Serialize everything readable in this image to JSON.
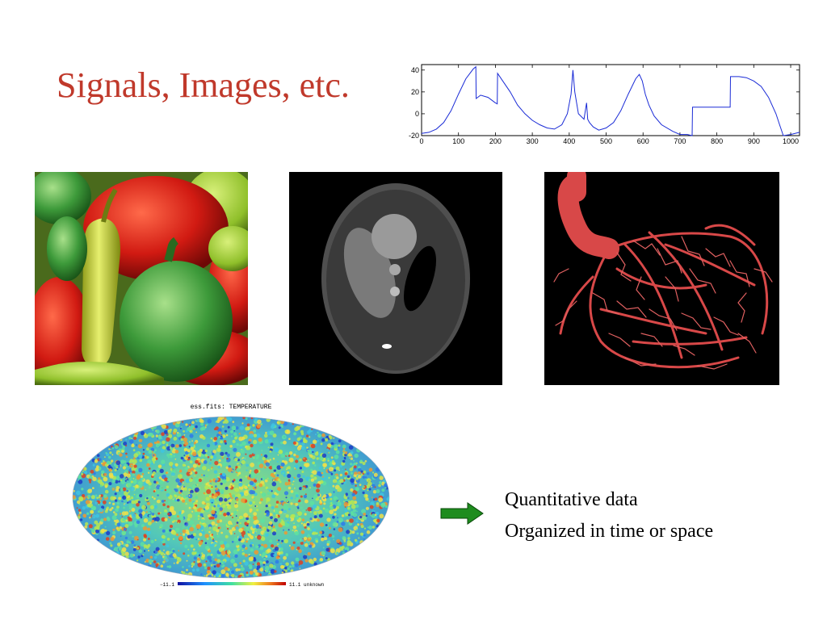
{
  "slide": {
    "title": "Signals, Images, etc.",
    "bullets": [
      "Quantitative data",
      "Organized in time or space"
    ],
    "arrow_icon": "right-arrow-icon",
    "colors": {
      "title": "#c0392b",
      "signal_line": "#1a2bd6",
      "arrow_fill": "#1e8c1e",
      "arrow_stroke": "#0a4a0a"
    }
  },
  "chart_data": {
    "type": "line",
    "title": "",
    "xlabel": "",
    "ylabel": "",
    "xlim": [
      0,
      1024
    ],
    "ylim": [
      -20,
      45
    ],
    "x_ticks": [
      0,
      100,
      200,
      300,
      400,
      500,
      600,
      700,
      800,
      900,
      1000
    ],
    "y_ticks": [
      -20,
      0,
      20,
      40
    ],
    "grid": false,
    "series": [
      {
        "x": [
          0,
          20,
          40,
          60,
          80,
          100,
          120,
          140,
          147,
          148,
          160,
          180,
          200,
          205,
          206,
          220,
          240,
          260,
          280,
          300,
          320,
          340,
          360,
          380,
          395,
          405,
          410,
          415,
          425,
          440,
          447,
          450,
          455,
          465,
          480,
          500,
          520,
          540,
          560,
          580,
          590,
          598,
          606,
          616,
          630,
          650,
          680,
          700,
          720,
          733,
          734,
          760,
          800,
          836,
          837,
          860,
          880,
          900,
          920,
          940,
          960,
          970,
          980,
          1000,
          1024
        ],
        "y": [
          -18,
          -17,
          -14,
          -8,
          3,
          18,
          32,
          41,
          43,
          14,
          17,
          15,
          10,
          9,
          37,
          30,
          20,
          8,
          0,
          -6,
          -10,
          -13,
          -14,
          -10,
          0,
          18,
          40,
          20,
          0,
          -5,
          10,
          -5,
          -8,
          -12,
          -15,
          -13,
          -8,
          3,
          18,
          32,
          36,
          30,
          18,
          8,
          -2,
          -10,
          -16,
          -19,
          -19,
          -20,
          6,
          6,
          6,
          6,
          34,
          34,
          33,
          30,
          25,
          15,
          0,
          -10,
          -20,
          -19,
          -17
        ]
      }
    ]
  },
  "images": {
    "peppers": "peppers-photo",
    "phantom": "shepp-logan-phantom",
    "heart": "coronary-vessels-cast"
  },
  "cmb_map": {
    "title": "ess.fits: TEMPERATURE",
    "colorbar_min": "−11.1",
    "colorbar_max": "11.1 unknown"
  }
}
